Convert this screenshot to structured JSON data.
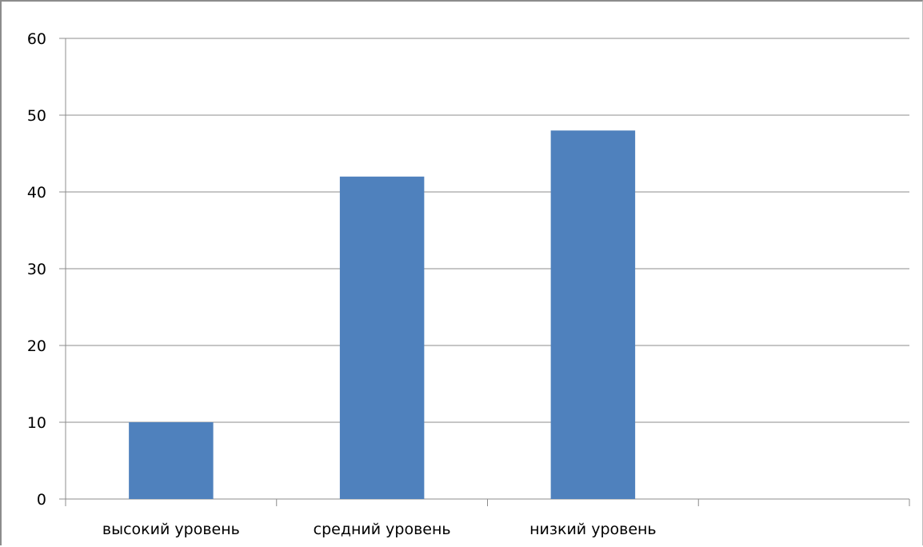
{
  "chart_data": {
    "type": "bar",
    "categories": [
      "высокий уровень",
      "средний уровень",
      "низкий уровень",
      ""
    ],
    "values": [
      10,
      42,
      48,
      null
    ],
    "ylim": [
      0,
      60
    ],
    "yticks": [
      0,
      10,
      20,
      30,
      40,
      50,
      60
    ],
    "grid": true,
    "legend": "none",
    "colors": {
      "bar": "#4f81bd",
      "grid": "#8c8c8c",
      "axis": "#8c8c8c"
    }
  }
}
